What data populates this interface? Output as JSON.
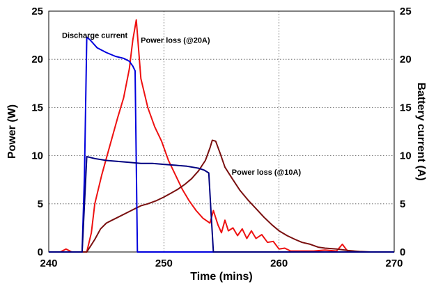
{
  "chart_data": {
    "type": "line",
    "xlabel": "Time (mins)",
    "ylabel": "Power (W)",
    "y2label": "Battery current (A)",
    "xlim": [
      240,
      270
    ],
    "ylim": [
      0,
      25
    ],
    "y2lim": [
      0,
      25
    ],
    "xticks": [
      "240",
      "250",
      "260",
      "270"
    ],
    "yticks": [
      "0",
      "5",
      "10",
      "15",
      "20",
      "25"
    ],
    "y2ticks": [
      "0",
      "5",
      "10",
      "15",
      "20",
      "25"
    ],
    "grid": true,
    "annotations": [
      {
        "text": "Discharge current",
        "x": 244.0,
        "y": 22.5
      },
      {
        "text": "Power loss (@20A)",
        "x": 251.0,
        "y": 22.0
      },
      {
        "text": "Power loss (@10A)",
        "x": 258.9,
        "y": 8.3
      }
    ],
    "series": [
      {
        "color": "#ee1111",
        "axis": "left",
        "points": [
          [
            240,
            0
          ],
          [
            241,
            0
          ],
          [
            241.5,
            0.3
          ],
          [
            242,
            0
          ],
          [
            243.3,
            0
          ],
          [
            243.7,
            2
          ],
          [
            244,
            5
          ],
          [
            244.6,
            8
          ],
          [
            245.3,
            11
          ],
          [
            246,
            14
          ],
          [
            246.5,
            16
          ],
          [
            247,
            19
          ],
          [
            247.3,
            22
          ],
          [
            247.6,
            24.1
          ],
          [
            248,
            18
          ],
          [
            248.6,
            15
          ],
          [
            249.2,
            13
          ],
          [
            249.8,
            11.5
          ],
          [
            250.4,
            9.5
          ],
          [
            251,
            8
          ],
          [
            251.6,
            6.5
          ],
          [
            252.2,
            5.3
          ],
          [
            252.8,
            4.3
          ],
          [
            253.4,
            3.5
          ],
          [
            254,
            3
          ],
          [
            254.3,
            4.3
          ],
          [
            254.7,
            2.8
          ],
          [
            255,
            2
          ],
          [
            255.3,
            3.3
          ],
          [
            255.6,
            2.2
          ],
          [
            256,
            2.5
          ],
          [
            256.4,
            1.7
          ],
          [
            256.8,
            2.4
          ],
          [
            257.2,
            1.4
          ],
          [
            257.6,
            2.2
          ],
          [
            258,
            1.4
          ],
          [
            258.5,
            1.8
          ],
          [
            259,
            1
          ],
          [
            259.5,
            1.1
          ],
          [
            260,
            0.3
          ],
          [
            260.5,
            0.4
          ],
          [
            261,
            0.1
          ],
          [
            262,
            0.1
          ],
          [
            263,
            0.1
          ],
          [
            264,
            0.2
          ],
          [
            265,
            0.1
          ],
          [
            265.5,
            0.8
          ],
          [
            266,
            0
          ],
          [
            267,
            0
          ],
          [
            270,
            0
          ]
        ]
      },
      {
        "color": "#7a1010",
        "axis": "left",
        "points": [
          [
            240,
            0
          ],
          [
            243.3,
            0
          ],
          [
            244,
            1.3
          ],
          [
            244.5,
            2.4
          ],
          [
            245,
            3
          ],
          [
            245.5,
            3.3
          ],
          [
            246,
            3.6
          ],
          [
            247,
            4.2
          ],
          [
            247.5,
            4.5
          ],
          [
            248,
            4.8
          ],
          [
            248.6,
            5
          ],
          [
            249.3,
            5.3
          ],
          [
            250,
            5.7
          ],
          [
            250.6,
            6.1
          ],
          [
            251.2,
            6.5
          ],
          [
            251.8,
            7
          ],
          [
            252.4,
            7.6
          ],
          [
            253,
            8.4
          ],
          [
            253.6,
            9.5
          ],
          [
            254,
            10.8
          ],
          [
            254.2,
            11.6
          ],
          [
            254.5,
            11.5
          ],
          [
            254.9,
            10.2
          ],
          [
            255.3,
            8.8
          ],
          [
            256,
            7.5
          ],
          [
            256.6,
            6.4
          ],
          [
            257.3,
            5.4
          ],
          [
            258,
            4.5
          ],
          [
            258.7,
            3.6
          ],
          [
            259.4,
            2.8
          ],
          [
            260,
            2.2
          ],
          [
            260.7,
            1.7
          ],
          [
            261.4,
            1.3
          ],
          [
            262,
            1
          ],
          [
            262.7,
            0.8
          ],
          [
            263.4,
            0.5
          ],
          [
            264,
            0.4
          ],
          [
            265,
            0.3
          ],
          [
            266,
            0.15
          ],
          [
            267,
            0.05
          ],
          [
            268,
            0
          ],
          [
            270,
            0
          ]
        ]
      },
      {
        "color": "#0000dd",
        "axis": "right",
        "points": [
          [
            240,
            0
          ],
          [
            242.9,
            0
          ],
          [
            243.1,
            8
          ],
          [
            243.3,
            22.3
          ],
          [
            243.6,
            22
          ],
          [
            244.2,
            21.2
          ],
          [
            245,
            20.7
          ],
          [
            245.8,
            20.3
          ],
          [
            246.5,
            20.1
          ],
          [
            247,
            19.8
          ],
          [
            247.3,
            19.3
          ],
          [
            247.5,
            18.8
          ],
          [
            247.7,
            0
          ],
          [
            270,
            0
          ]
        ]
      },
      {
        "color": "#000080",
        "axis": "right",
        "points": [
          [
            240,
            0
          ],
          [
            242.9,
            0
          ],
          [
            243.1,
            5
          ],
          [
            243.3,
            9.9
          ],
          [
            244,
            9.7
          ],
          [
            245,
            9.5
          ],
          [
            246,
            9.4
          ],
          [
            247,
            9.3
          ],
          [
            248,
            9.2
          ],
          [
            249,
            9.2
          ],
          [
            250,
            9.1
          ],
          [
            251,
            9
          ],
          [
            252,
            8.9
          ],
          [
            253,
            8.7
          ],
          [
            253.5,
            8.5
          ],
          [
            253.9,
            8.2
          ],
          [
            254.1,
            4
          ],
          [
            254.3,
            0
          ],
          [
            270,
            0
          ]
        ]
      }
    ]
  }
}
